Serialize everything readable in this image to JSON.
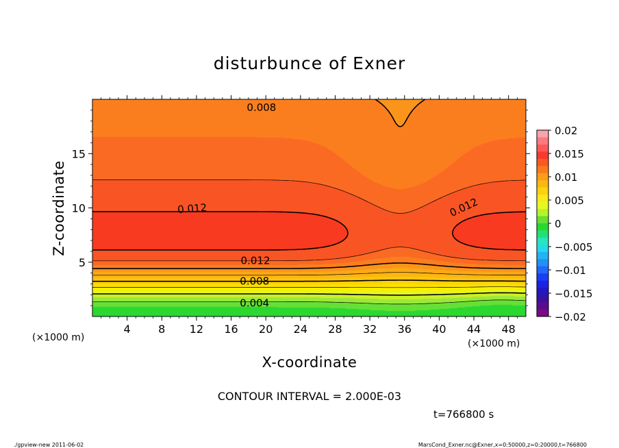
{
  "chart_data": {
    "type": "heatmap",
    "title": "disturbunce of Exner",
    "xlabel": "X-coordinate",
    "ylabel": "Z-coordinate",
    "x_unit": "(×1000 m)",
    "z_unit": "(×1000 m)",
    "xlim": [
      0,
      50
    ],
    "ylim": [
      0,
      20
    ],
    "x_ticks": [
      4,
      8,
      12,
      16,
      20,
      24,
      28,
      32,
      36,
      40,
      44,
      48
    ],
    "y_ticks": [
      5,
      10,
      15
    ],
    "contour_interval_text": "CONTOUR INTERVAL = 2.000E-03",
    "time_text": "t=766800 s",
    "contour_levels": [
      0.002,
      0.004,
      0.006,
      0.008,
      0.01,
      0.012,
      0.014,
      0.016,
      0.018
    ],
    "contour_labels": [
      {
        "text": "0.008",
        "x": 19.5,
        "z": 19.3,
        "angle": 0
      },
      {
        "text": "0.012",
        "x": 11.5,
        "z": 10.0,
        "angle": -4
      },
      {
        "text": "0.012",
        "x": 42.8,
        "z": 10.1,
        "angle": -25
      },
      {
        "text": "0.012",
        "x": 18.8,
        "z": 5.2,
        "angle": 0
      },
      {
        "text": "0.008",
        "x": 18.7,
        "z": 3.3,
        "angle": 0
      },
      {
        "text": "0.004",
        "x": 18.7,
        "z": 1.3,
        "angle": 0
      }
    ],
    "colorbar": {
      "min": -0.02,
      "max": 0.02,
      "ticks": [
        {
          "value": 0.02,
          "label": "0.02"
        },
        {
          "value": 0.015,
          "label": "0.015"
        },
        {
          "value": 0.01,
          "label": "0.01"
        },
        {
          "value": 0.005,
          "label": "0.005"
        },
        {
          "value": 0,
          "label": "0"
        },
        {
          "value": -0.005,
          "label": "−0.005"
        },
        {
          "value": -0.01,
          "label": "−0.01"
        },
        {
          "value": -0.015,
          "label": "−0.015"
        },
        {
          "value": -0.02,
          "label": "−0.02"
        }
      ],
      "colors": [
        "#f8a4a8",
        "#fb7a80",
        "#fb5a5a",
        "#fa3a2e",
        "#fa5a22",
        "#fb7a1e",
        "#fc9e16",
        "#fcb812",
        "#fcd20c",
        "#fae81a",
        "#e6f822",
        "#b6f428",
        "#66e036",
        "#2ad830",
        "#22e078",
        "#28e4c0",
        "#26d8ec",
        "#22b4f2",
        "#2290f8",
        "#2068f8",
        "#1a3ef4",
        "#1a24e2",
        "#2218c2",
        "#3a129e",
        "#5a0c8c",
        "#780a86"
      ]
    },
    "cells": {
      "colorscale": [
        [
          -0.002,
          "#24d828"
        ],
        [
          0.0,
          "#2ad830"
        ],
        [
          0.001,
          "#66e036"
        ],
        [
          0.002,
          "#9ae83a"
        ],
        [
          0.003,
          "#ccf028"
        ],
        [
          0.004,
          "#e6f420"
        ],
        [
          0.005,
          "#f8f000"
        ],
        [
          0.006,
          "#fce000"
        ],
        [
          0.007,
          "#fcd208"
        ],
        [
          0.008,
          "#fcc40e"
        ],
        [
          0.009,
          "#fcb612"
        ],
        [
          0.01,
          "#fca816"
        ],
        [
          0.011,
          "#fb941a"
        ],
        [
          0.012,
          "#fb7e1e"
        ],
        [
          0.013,
          "#fa6a22"
        ],
        [
          0.014,
          "#f95424"
        ],
        [
          0.016,
          "#f83a20"
        ]
      ]
    }
  },
  "footer": {
    "left": "./gpview-new   2011-06-02",
    "right": "MarsCond_Exner.nc@Exner,x=0:50000,z=0:20000,t=766800"
  }
}
